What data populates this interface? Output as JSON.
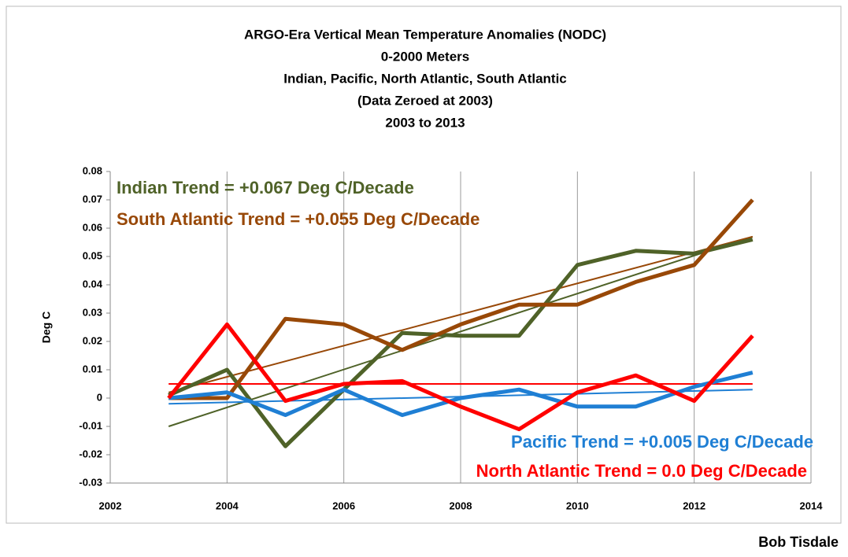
{
  "chart_data": {
    "type": "line",
    "title": [
      "ARGO-Era Vertical Mean Temperature Anomalies (NODC)",
      "0-2000 Meters",
      "Indian, Pacific, North Atlantic, South Atlantic",
      "(Data Zeroed at 2003)",
      "2003 to 2013"
    ],
    "y_label": "Deg C",
    "credit": "Bob Tisdale",
    "x": [
      2003,
      2004,
      2005,
      2006,
      2007,
      2008,
      2009,
      2010,
      2011,
      2012,
      2013
    ],
    "trend_x": [
      2003,
      2013
    ],
    "series": [
      {
        "annotation": "Indian Trend = +0.067 Deg C/Decade",
        "color": "#4f6228",
        "values": [
          0.001,
          0.01,
          -0.017,
          0.003,
          0.023,
          0.022,
          0.022,
          0.047,
          0.052,
          0.051,
          0.056
        ],
        "trend": [
          -0.01,
          0.057
        ]
      },
      {
        "annotation": "South Atlantic Trend = +0.055 Deg C/Decade",
        "color": "#984807",
        "values": [
          0.0,
          0.0,
          0.028,
          0.026,
          0.017,
          0.026,
          0.033,
          0.033,
          0.041,
          0.047,
          0.07
        ],
        "trend": [
          0.002,
          0.057
        ]
      },
      {
        "annotation": "Pacific Trend = +0.005 Deg C/Decade",
        "color": "#1f7fd4",
        "values": [
          0.0,
          0.002,
          -0.006,
          0.003,
          -0.006,
          0.0,
          0.003,
          -0.003,
          -0.003,
          0.004,
          0.009
        ],
        "trend": [
          -0.002,
          0.003
        ]
      },
      {
        "annotation": "North Atlantic Trend = 0.0 Deg C/Decade",
        "color": "#ff0000",
        "values": [
          0.0,
          0.026,
          -0.001,
          0.005,
          0.006,
          -0.003,
          -0.011,
          0.002,
          0.008,
          -0.001,
          0.022
        ],
        "trend": [
          0.005,
          0.005
        ]
      }
    ],
    "xlim": [
      2002,
      2014
    ],
    "xticks": [
      2002,
      2004,
      2006,
      2008,
      2010,
      2012,
      2014
    ],
    "ylim": [
      -0.03,
      0.08
    ],
    "yticks": [
      0.08,
      0.07,
      0.06,
      0.05,
      0.04,
      0.03,
      0.02,
      0.01,
      0,
      -0.01,
      -0.02,
      -0.03
    ],
    "grid": "x"
  }
}
